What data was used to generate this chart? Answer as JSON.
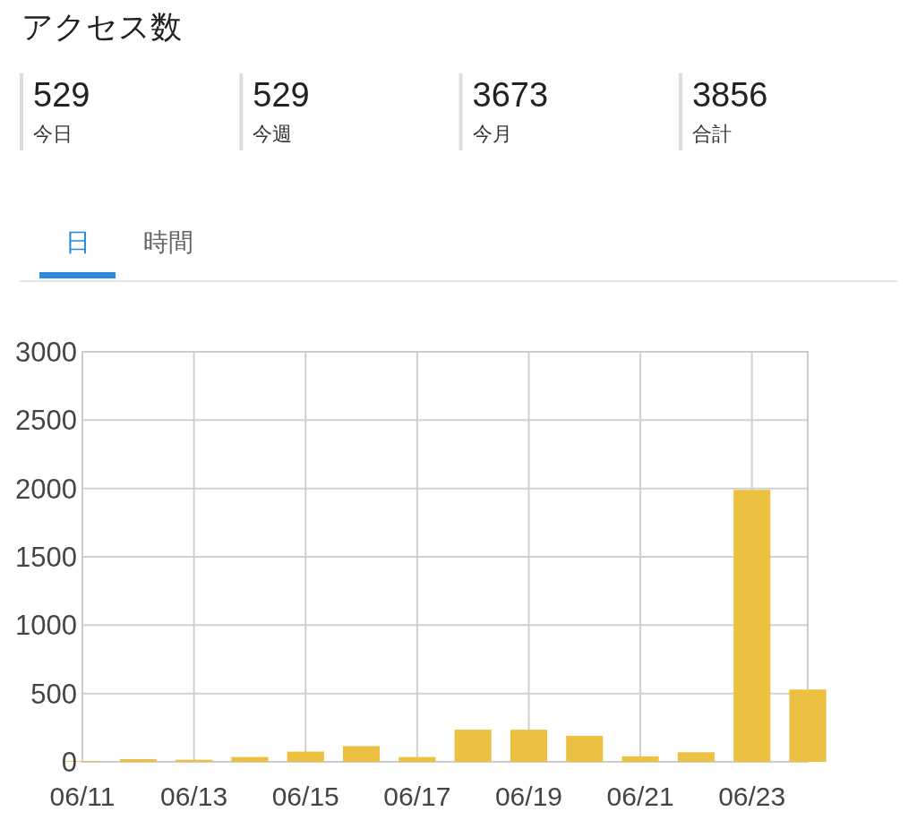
{
  "chart_data": [
    {
      "type": "other",
      "title": "アクセス数",
      "annotations": [
        "529",
        "今日",
        "529",
        "今週",
        "3673",
        "今月",
        "3856",
        "合計"
      ]
    },
    {
      "type": "bar",
      "annotations": [
        "日",
        "時間"
      ],
      "x": [
        "--06-11",
        "--06-12",
        "--06-13",
        "--06-14",
        "--06-15",
        "--06-16",
        "--06-17",
        "--06-18",
        "--06-19",
        "--06-20",
        "--06-21",
        "--06-22",
        "--06-23",
        "--06-24"
      ],
      "values": [
        5,
        20,
        15,
        35,
        75,
        115,
        35,
        235,
        235,
        190,
        40,
        70,
        1990,
        529
      ],
      "color": "#ecc040",
      "xlim": [
        "--06-11",
        "--06-24"
      ],
      "xticks": [
        {
          "value": "--06-11",
          "label": "06/11"
        },
        {
          "value": "--06-13",
          "label": "06/13"
        },
        {
          "value": "--06-15",
          "label": "06/15"
        },
        {
          "value": "--06-17",
          "label": "06/17"
        },
        {
          "value": "--06-19",
          "label": "06/19"
        },
        {
          "value": "--06-21",
          "label": "06/21"
        },
        {
          "value": "--06-23",
          "label": "06/23"
        }
      ],
      "ylim": [
        0,
        3000
      ],
      "yticks": [
        0,
        500,
        1000,
        1500,
        2000,
        2500,
        3000
      ],
      "grid": true
    }
  ]
}
